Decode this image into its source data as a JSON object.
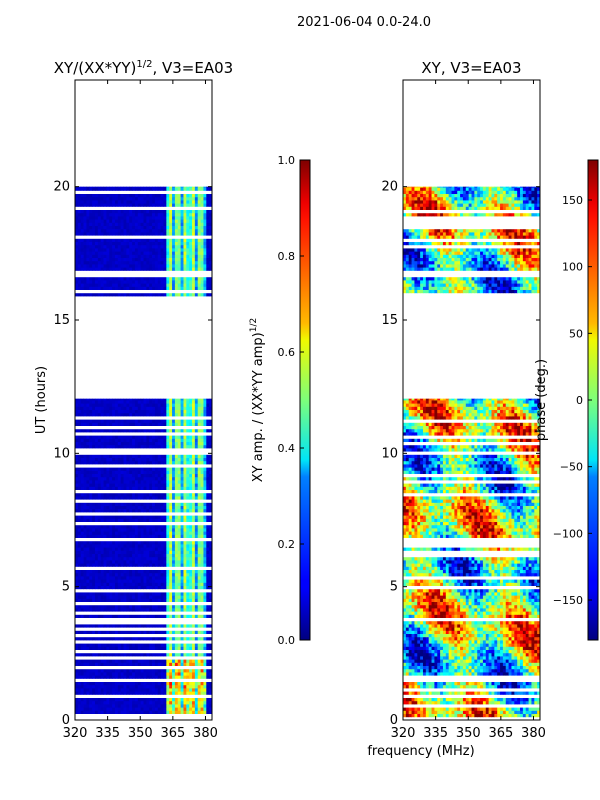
{
  "figure": {
    "suptitle": "2021-06-04 0.0-24.0",
    "shared_xlabel": "frequency (MHz)"
  },
  "chart_data": [
    {
      "type": "heatmap",
      "title": "XY/(XX*YY)^{1/2}, V3=EA03",
      "title_main": "XY/(XX*YY)",
      "title_sup": "1/2",
      "title_tail": ", V3=EA03",
      "xlabel": "",
      "ylabel": "UT (hours)",
      "xlim": [
        320,
        383
      ],
      "ylim": [
        0,
        24
      ],
      "xticks": [
        320,
        335,
        350,
        365,
        380
      ],
      "yticks": [
        0,
        5,
        10,
        15,
        20
      ],
      "data_time_ranges_hours": [
        [
          0.0,
          12.05
        ],
        [
          15.9,
          20.0
        ]
      ],
      "bright_frequency_band_mhz": [
        362,
        381
      ],
      "description": "normalized XY amplitude vs frequency and UT",
      "colorbar": {
        "label": "XY amp. / (XX*YY amp)",
        "label_sup": "1/2",
        "range": [
          0.0,
          1.0
        ],
        "ticks": [
          "0.0",
          "0.2",
          "0.4",
          "0.6",
          "0.8",
          "1.0"
        ],
        "colormap": "jet"
      }
    },
    {
      "type": "heatmap",
      "title": "XY, V3=EA03",
      "xlabel": "frequency (MHz)",
      "ylabel": "",
      "xlim": [
        320,
        383
      ],
      "ylim": [
        0,
        24
      ],
      "xticks": [
        320,
        335,
        350,
        365,
        380
      ],
      "yticks": [
        0,
        5,
        10,
        15,
        20
      ],
      "data_time_ranges_hours": [
        [
          0.0,
          12.05
        ],
        [
          15.9,
          20.0
        ]
      ],
      "description": "XY phase vs frequency and UT",
      "colorbar": {
        "label": "phase (deg.)",
        "range": [
          -180,
          180
        ],
        "ticks": [
          "150",
          "100",
          "50",
          "0",
          "−50",
          "−100",
          "−150"
        ],
        "tick_values": [
          150,
          100,
          50,
          0,
          -50,
          -100,
          -150
        ],
        "colormap": "jet"
      }
    }
  ],
  "colors": {
    "jet_low": "#00007f",
    "jet_high": "#7f0000",
    "gap": "#ffffff",
    "axis": "#000000"
  }
}
